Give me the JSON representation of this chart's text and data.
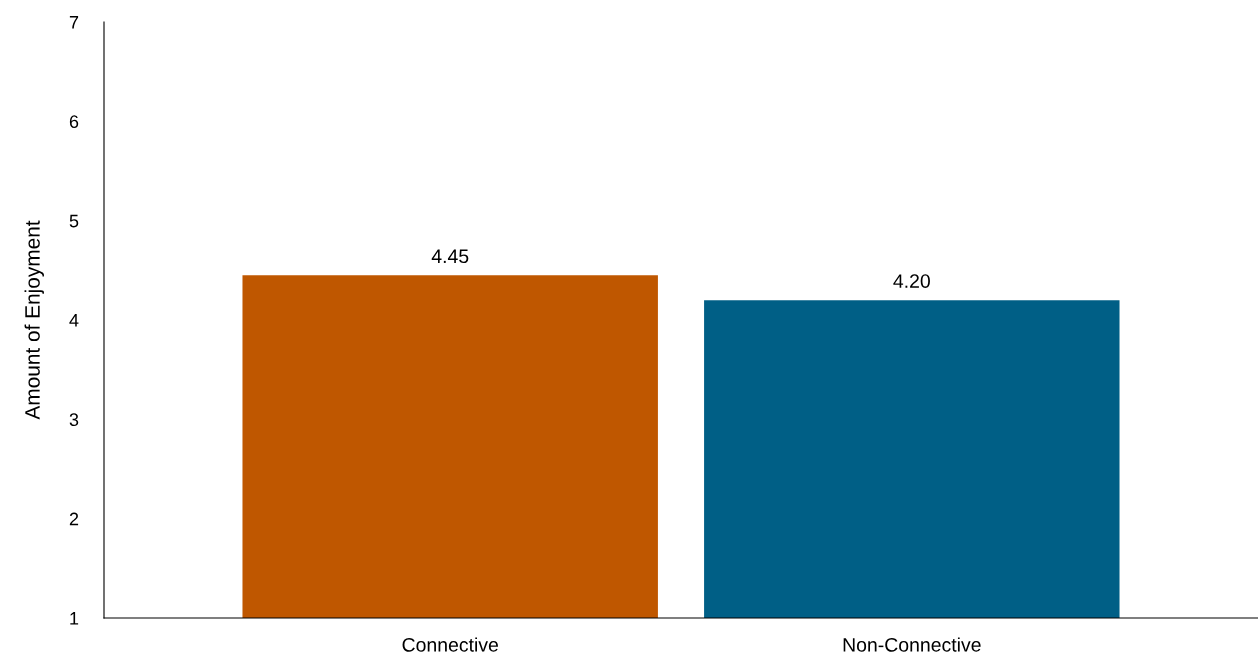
{
  "chart_data": {
    "type": "bar",
    "ylabel": "Amount of Enjoyment",
    "categories": [
      "Connective",
      "Non-Connective"
    ],
    "values": [
      4.45,
      4.2
    ],
    "value_labels": [
      "4.45",
      "4.20"
    ],
    "colors": [
      "#bf5700",
      "#005f86"
    ],
    "ylim": [
      1,
      7
    ],
    "yticks": [
      1,
      2,
      3,
      4,
      5,
      6,
      7
    ],
    "grid": false,
    "legend": false
  }
}
